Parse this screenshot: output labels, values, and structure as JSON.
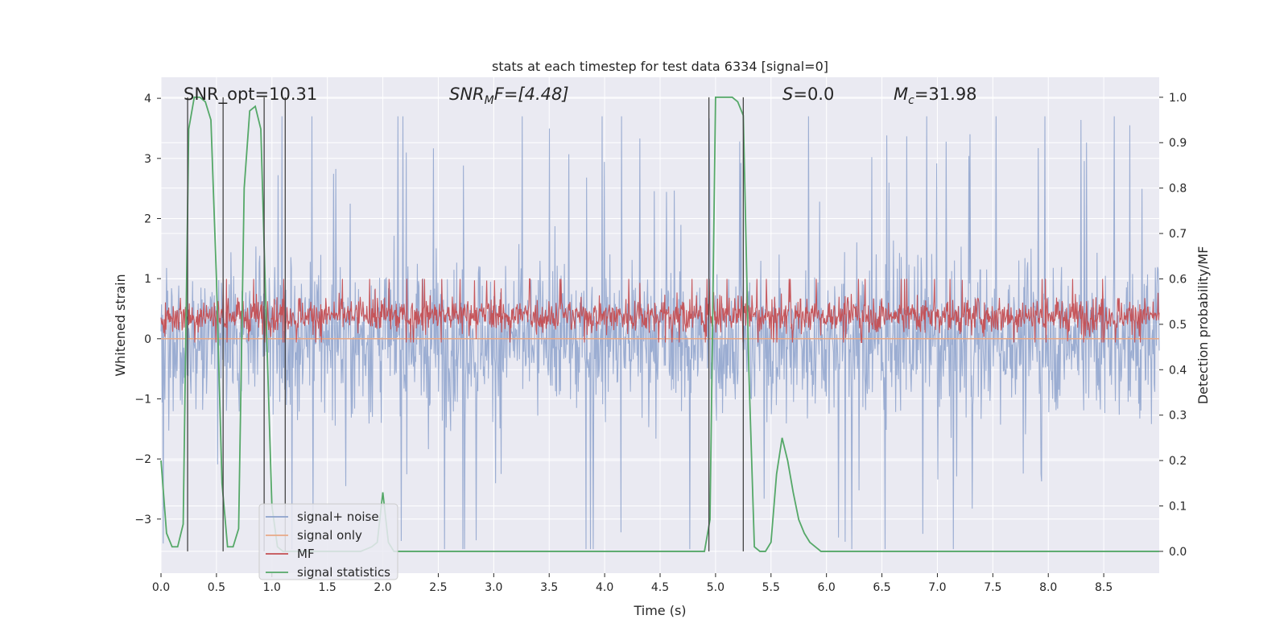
{
  "chart_data": {
    "type": "line",
    "title": "stats at each timestep for test data 6334 [signal=0]",
    "xlabel": "Time (s)",
    "ylabel_left": "Whitened strain",
    "ylabel_right": "Detection probability/MF",
    "xlim": [
      0,
      9.0
    ],
    "ylim_left": [
      -3.9,
      4.35
    ],
    "ylim_right": [
      -0.048,
      1.044
    ],
    "x_ticks": [
      0.0,
      0.5,
      1.0,
      1.5,
      2.0,
      2.5,
      3.0,
      3.5,
      4.0,
      4.5,
      5.0,
      5.5,
      6.0,
      6.5,
      7.0,
      7.5,
      8.0,
      8.5
    ],
    "x_tick_labels": [
      "0.0",
      "0.5",
      "1.0",
      "1.5",
      "2.0",
      "2.5",
      "3.0",
      "3.5",
      "4.0",
      "4.5",
      "5.0",
      "5.5",
      "6.0",
      "6.5",
      "7.0",
      "7.5",
      "8.0",
      "8.5"
    ],
    "y_left_ticks": [
      -3,
      -2,
      -1,
      0,
      1,
      2,
      3,
      4
    ],
    "y_left_tick_labels": [
      "−3",
      "−2",
      "−1",
      "0",
      "1",
      "2",
      "3",
      "4"
    ],
    "y_right_ticks": [
      0.0,
      0.1,
      0.2,
      0.3,
      0.4,
      0.5,
      0.6,
      0.7,
      0.8,
      0.9,
      1.0
    ],
    "y_right_tick_labels": [
      "0.0",
      "0.1",
      "0.2",
      "0.3",
      "0.4",
      "0.5",
      "0.6",
      "0.7",
      "0.8",
      "0.9",
      "1.0"
    ],
    "grid": true,
    "legend_position": "lower-left",
    "annotations": {
      "snr_opt": "SNR_opt=10.31",
      "snr_mf_base": "SNR",
      "snr_mf_sub": "M",
      "snr_mf_rest": "F=[4.48]",
      "s_italic": "S",
      "s_rest": "=0.0",
      "mc_base": "M",
      "mc_sub": "c",
      "mc_rest": "=31.98"
    },
    "series": [
      {
        "name": "signal+ noise",
        "color": "#8da2cc",
        "style": "noise",
        "axis": "left",
        "n_points": 1800,
        "typical_range": [
          -1.6,
          1.6
        ],
        "extreme_range": [
          -3.5,
          3.7
        ]
      },
      {
        "name": "signal only",
        "color": "#e8a987",
        "axis": "left",
        "x": [
          0,
          9.0
        ],
        "y": [
          0,
          0
        ]
      },
      {
        "name": "MF",
        "color": "#c44e52",
        "style": "noise",
        "axis": "right",
        "n_points": 1800,
        "typical_range": [
          0.47,
          0.57
        ],
        "extreme_range": [
          0.46,
          0.6
        ]
      },
      {
        "name": "signal statistics",
        "color": "#55a868",
        "axis": "right",
        "x": [
          0.0,
          0.05,
          0.1,
          0.15,
          0.2,
          0.25,
          0.3,
          0.35,
          0.4,
          0.45,
          0.5,
          0.55,
          0.6,
          0.65,
          0.7,
          0.75,
          0.8,
          0.85,
          0.9,
          0.95,
          1.0,
          1.05,
          1.1,
          1.15,
          1.2,
          1.25,
          1.3,
          1.35,
          1.4,
          1.5,
          1.6,
          1.7,
          1.8,
          1.9,
          1.95,
          2.0,
          2.05,
          2.1,
          2.2,
          4.5,
          4.9,
          4.95,
          5.0,
          5.05,
          5.1,
          5.15,
          5.2,
          5.25,
          5.3,
          5.35,
          5.4,
          5.45,
          5.5,
          5.55,
          5.6,
          5.65,
          5.7,
          5.75,
          5.8,
          5.85,
          5.9,
          5.95,
          6.0,
          6.05,
          6.1,
          6.2,
          9.0
        ],
        "y": [
          0.2,
          0.04,
          0.01,
          0.01,
          0.06,
          0.93,
          1.0,
          1.0,
          0.99,
          0.95,
          0.6,
          0.15,
          0.01,
          0.01,
          0.05,
          0.8,
          0.97,
          0.98,
          0.93,
          0.5,
          0.1,
          0.01,
          0.0,
          0.0,
          0.0,
          0.0,
          0.0,
          0.0,
          0.0,
          0.0,
          0.0,
          0.0,
          0.0,
          0.01,
          0.02,
          0.13,
          0.02,
          0.0,
          0.0,
          0.0,
          0.0,
          0.07,
          1.0,
          1.0,
          1.0,
          1.0,
          0.99,
          0.96,
          0.4,
          0.01,
          0.0,
          0.0,
          0.02,
          0.17,
          0.25,
          0.2,
          0.13,
          0.07,
          0.04,
          0.02,
          0.01,
          0.0,
          0.0,
          0.0,
          0.0,
          0.0,
          0.0
        ]
      }
    ],
    "vertical_lines_x": [
      0.24,
      0.56,
      0.93,
      1.12,
      4.94,
      5.25
    ]
  }
}
